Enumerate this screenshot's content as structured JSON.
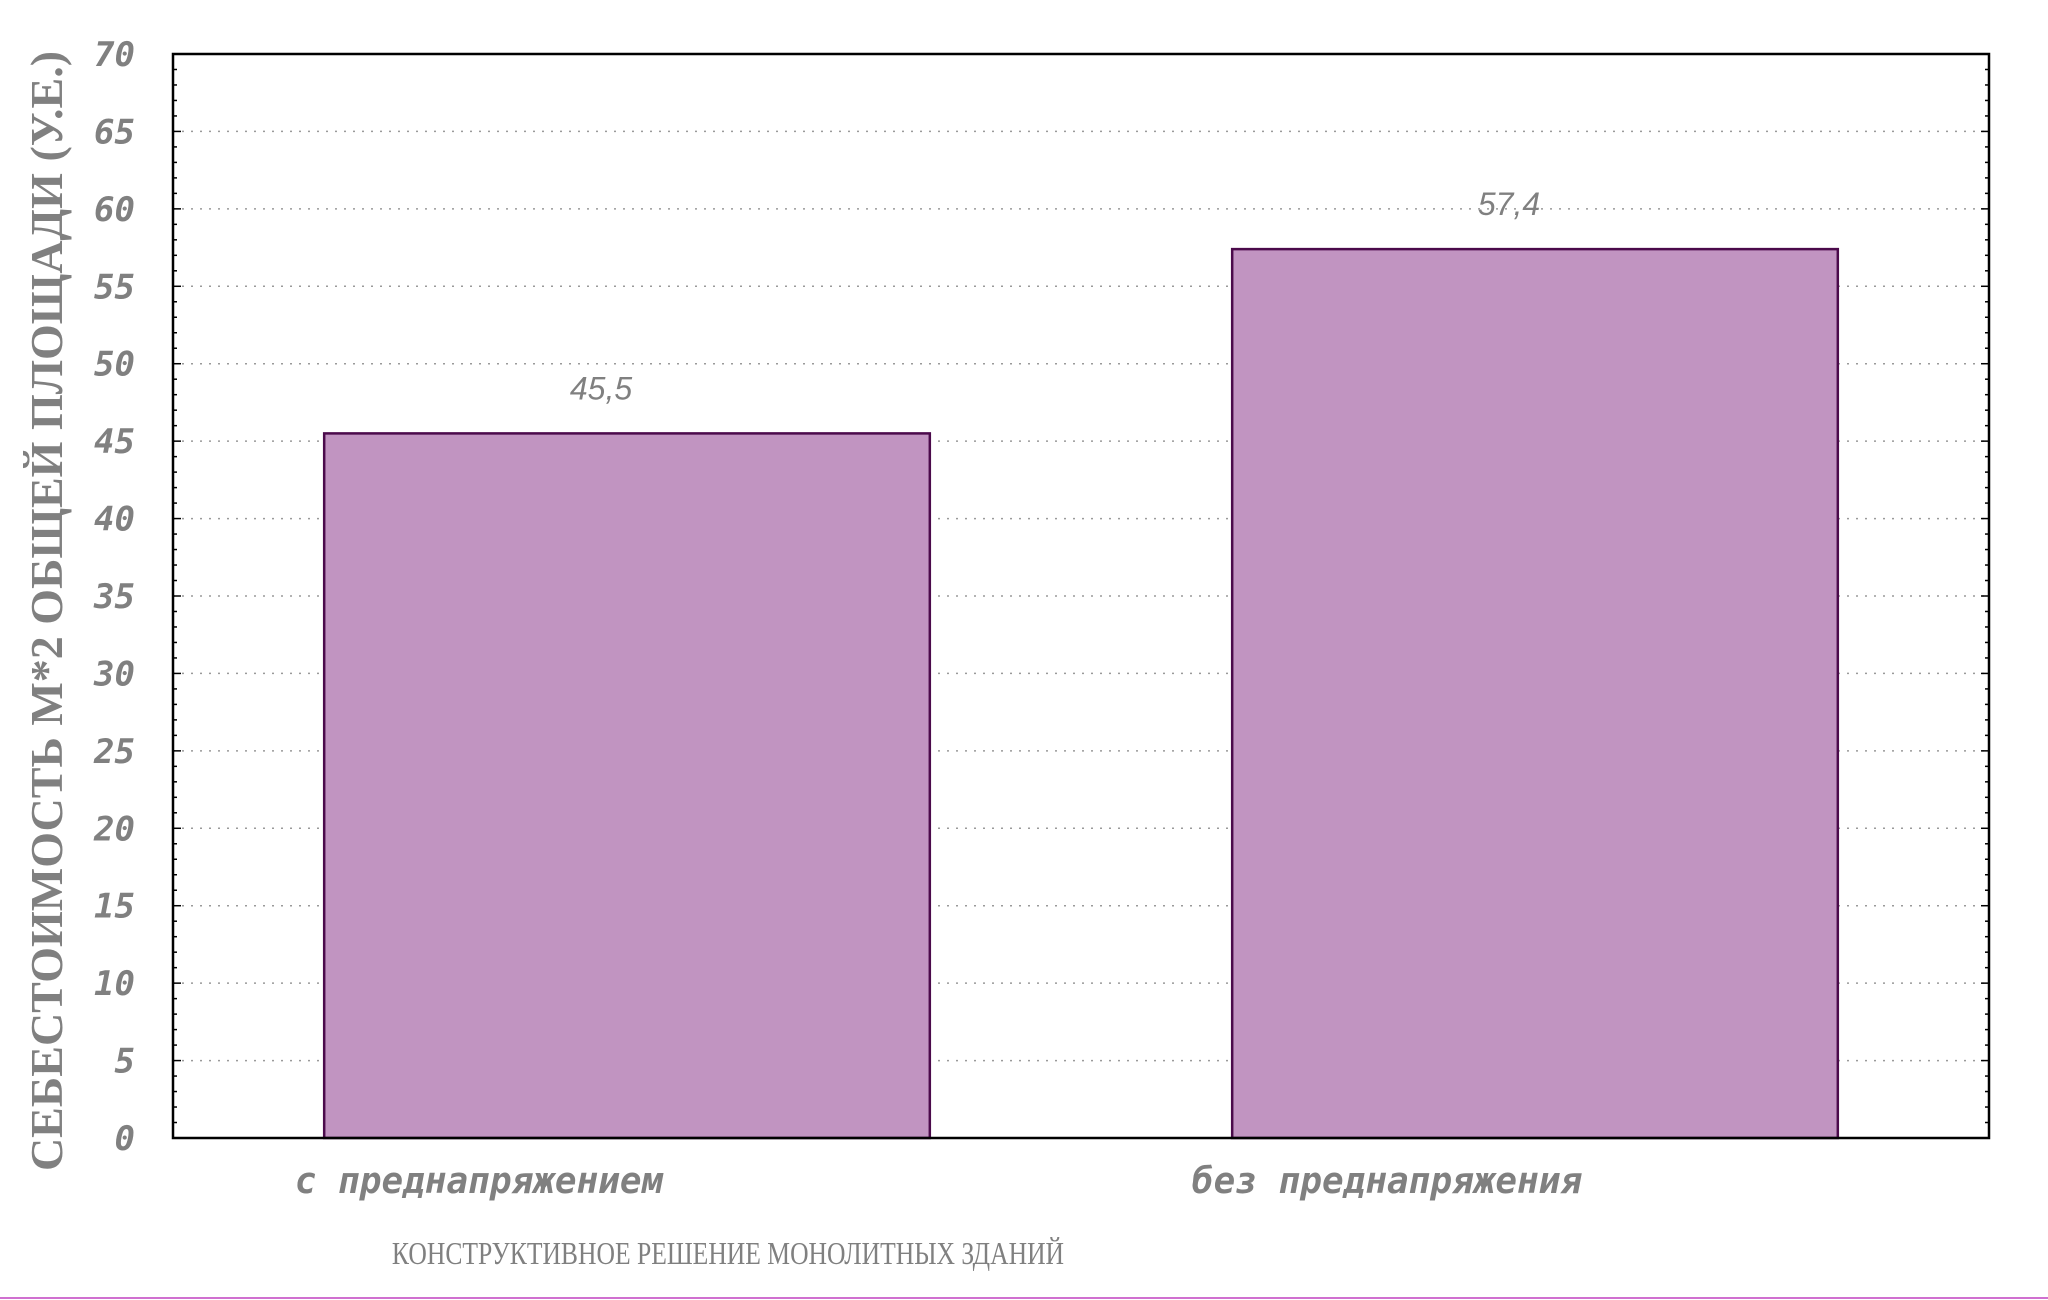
{
  "chart_data": {
    "type": "bar",
    "categories": [
      "с  преднапряжением",
      "без  преднапряжения"
    ],
    "values": [
      45.5,
      57.4
    ],
    "value_labels": [
      "45,5",
      "57,4"
    ],
    "ylabel": "СЕБЕСТОИМОСТЬ М*2 ОБЩЕЙ ПЛОЩАДИ (У.Е.)",
    "xlabel": "КОНСТРУКТИВНОЕ РЕШЕНИЕ МОНОЛИТНЫХ ЗДАНИЙ",
    "ylim": [
      0,
      70
    ],
    "yticks": [
      0,
      5,
      10,
      15,
      20,
      25,
      30,
      35,
      40,
      45,
      50,
      55,
      60,
      65,
      70
    ],
    "grid": true,
    "colors": {
      "bar_fill": "#c194c1",
      "bar_stroke": "#4b0a4b",
      "bottom_line": "#d070d0"
    }
  }
}
